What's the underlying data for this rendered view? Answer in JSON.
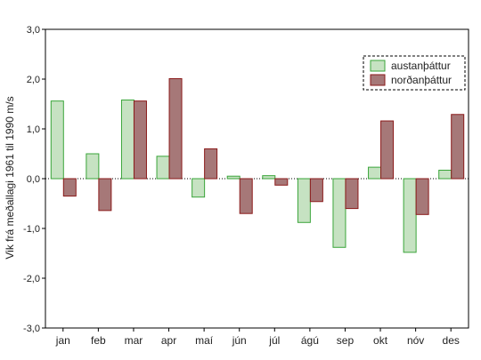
{
  "chart_data": {
    "type": "bar",
    "title": "",
    "xlabel": "",
    "ylabel": "Vik frá meðallagi 1961 til 1990 m/s",
    "ylim": [
      -3.0,
      3.0
    ],
    "yticks": [
      "-3,0",
      "-2,0",
      "-1,0",
      "0,0",
      "1,0",
      "2,0",
      "3,0"
    ],
    "ytick_values": [
      -3,
      -2,
      -1,
      0,
      1,
      2,
      3
    ],
    "grid": false,
    "legend_position": "top-right",
    "categories": [
      "jan",
      "feb",
      "mar",
      "apr",
      "maí",
      "jún",
      "júl",
      "ágú",
      "sep",
      "okt",
      "nóv",
      "des"
    ],
    "series": [
      {
        "name": "austanþáttur",
        "fill": "#c6e2c2",
        "stroke": "#3aa53a",
        "values": [
          1.56,
          0.5,
          1.58,
          0.45,
          -0.37,
          0.05,
          0.06,
          -0.88,
          -1.38,
          0.23,
          -1.48,
          0.17
        ]
      },
      {
        "name": "norðanþáttur",
        "fill": "#a67878",
        "stroke": "#8b1a1a",
        "values": [
          -0.35,
          -0.64,
          1.56,
          2.01,
          0.6,
          -0.7,
          -0.13,
          -0.46,
          -0.6,
          1.16,
          -0.72,
          1.29
        ]
      }
    ]
  }
}
